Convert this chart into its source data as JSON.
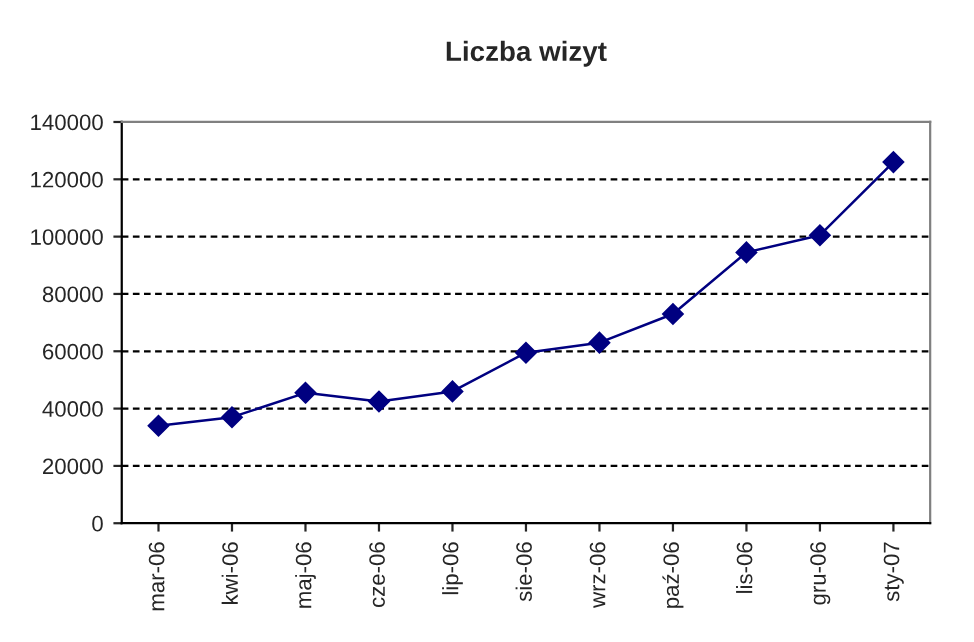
{
  "chart_data": {
    "type": "line",
    "title": "Liczba wizyt",
    "categories": [
      "mar-06",
      "kwi-06",
      "maj-06",
      "cze-06",
      "lip-06",
      "sie-06",
      "wrz-06",
      "paź-06",
      "lis-06",
      "gru-06",
      "sty-07"
    ],
    "series": [
      {
        "color": "#000080",
        "values": [
          34000,
          37000,
          45500,
          42500,
          46000,
          59500,
          63000,
          73000,
          94500,
          100500,
          126000
        ]
      }
    ],
    "ylim": [
      0,
      140000
    ],
    "yticks": [
      0,
      20000,
      40000,
      60000,
      80000,
      100000,
      120000,
      140000
    ],
    "grid": "y",
    "marker": "diamond",
    "line_style": "solid"
  }
}
